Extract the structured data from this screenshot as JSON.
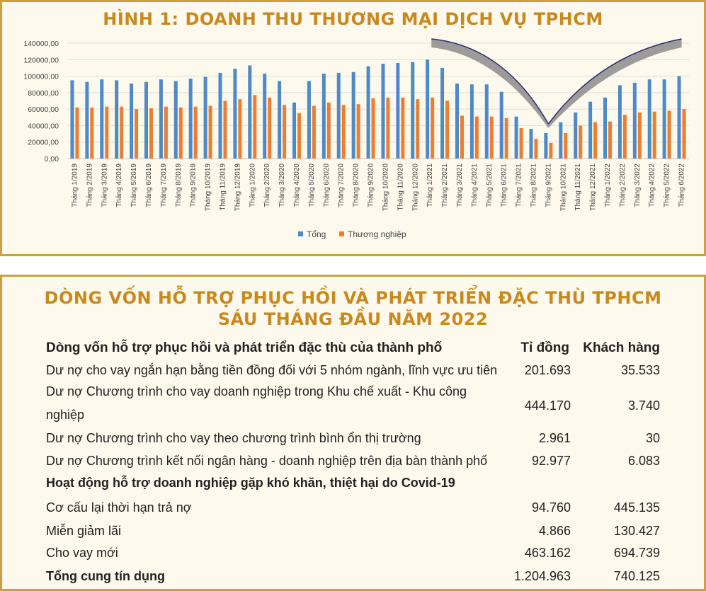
{
  "chart_panel": {
    "title": "HÌNH 1: DOANH THU THƯƠNG MẠI DỊCH VỤ TPHCM"
  },
  "chart_data": {
    "type": "bar",
    "categories": [
      "Tháng 1/2019",
      "Tháng 2/2019",
      "Tháng 3/2019",
      "Tháng 4/2019",
      "Tháng 5/2019",
      "Tháng 6/2019",
      "Tháng 7/2019",
      "Tháng 8/2019",
      "Tháng 9/2019",
      "Tháng 10/2019",
      "Tháng 11/2019",
      "Tháng 12/2019",
      "Tháng 1/2020",
      "Tháng 2/2020",
      "Tháng 3/2020",
      "Tháng 4/2020",
      "Tháng 5/2020",
      "Tháng 6/2020",
      "Tháng 7/2020",
      "Tháng 8/2020",
      "Tháng 9/2020",
      "Tháng 10/2020",
      "Tháng 11/2020",
      "Tháng 12/2020",
      "Tháng 1/2021",
      "Tháng 2/2021",
      "Tháng 3/2021",
      "Tháng 4/2021",
      "Tháng 5/2021",
      "Tháng 6/2021",
      "Tháng 7/2021",
      "Tháng 8/2021",
      "Tháng 9/2021",
      "Tháng 10/2021",
      "Tháng 11/2021",
      "Tháng 12/2021",
      "Tháng 1/2022",
      "Tháng 2/2022",
      "Tháng 3/2022",
      "Tháng 4/2022",
      "Tháng 5/2022",
      "Tháng 6/2022"
    ],
    "series": [
      {
        "name": "Tổng",
        "color": "#4e8ac8",
        "values": [
          95000,
          93000,
          96000,
          95000,
          91000,
          93000,
          96000,
          94000,
          97000,
          99000,
          104000,
          109000,
          113000,
          103000,
          94000,
          68000,
          94000,
          103000,
          104000,
          105000,
          112000,
          115000,
          116000,
          117000,
          120000,
          110000,
          91000,
          90000,
          90000,
          81000,
          51000,
          36000,
          31000,
          44000,
          56000,
          69000,
          74000,
          89000,
          92000,
          96000,
          96000,
          100000
        ]
      },
      {
        "name": "Thương nghiệp",
        "color": "#ee7d31",
        "values": [
          62000,
          62000,
          63000,
          63000,
          60000,
          61000,
          63000,
          62000,
          63000,
          64000,
          70000,
          72000,
          77000,
          74000,
          65000,
          55000,
          64000,
          68000,
          65000,
          66000,
          73000,
          74000,
          74000,
          72000,
          74000,
          70000,
          52000,
          51000,
          51000,
          49000,
          37000,
          24000,
          19000,
          31000,
          40000,
          44000,
          45000,
          53000,
          56000,
          57000,
          58000,
          60000
        ]
      }
    ],
    "y_ticks": [
      "0,00",
      "20000,00",
      "40000,00",
      "60000,00",
      "80000,00",
      "100000,00",
      "120000,00",
      "140000,00"
    ],
    "ylim": [
      0,
      140000
    ],
    "grid": true,
    "legend_position": "bottom",
    "xlabel": "",
    "ylabel": ""
  },
  "table_panel": {
    "title_line1": "DÒNG VỐN HỖ TRỢ PHỤC HỒI VÀ PHÁT TRIỂN ĐẶC THÙ TPHCM",
    "title_line2": "SÁU THÁNG ĐẦU NĂM 2022",
    "header": {
      "label": "Dòng vốn hỗ trợ phục hồi và phát triển đặc thù của thành phố",
      "col1": "Tỉ đồng",
      "col2": "Khách hàng"
    },
    "rows": [
      {
        "label": "Dư nợ cho vay ngắn hạn bằng tiền đồng đối với 5 nhóm ngành, lĩnh vực ưu tiên",
        "v1": "201.693",
        "v2": "35.533"
      },
      {
        "label": "Dư nợ Chương trình cho vay doanh nghiệp trong Khu chế xuất - Khu công",
        "label2": "nghiệp",
        "v1": "444.170",
        "v2": "3.740"
      },
      {
        "label": "Dư nợ Chương trình cho vay theo chương trình bình ổn thị trường",
        "v1": "2.961",
        "v2": "30"
      },
      {
        "label": "Dư nợ Chương trình kết nối ngân hàng - doanh nghiệp trên địa bàn thành phố",
        "v1": "92.977",
        "v2": "6.083"
      },
      {
        "label": "Hoạt động hỗ trợ doanh nghiệp gặp khó khăn, thiệt hại do Covid-19"
      },
      {
        "label": "Cơ cấu lại thời hạn trả nợ",
        "v1": "94.760",
        "v2": "445.135"
      },
      {
        "label": "Miễn giảm lãi",
        "v1": "4.866",
        "v2": "130.427"
      },
      {
        "label": "Cho vay mới",
        "v1": "463.162",
        "v2": "694.739"
      },
      {
        "label": "Tổng cung tín dụng",
        "v1": "1.204.963",
        "v2": "740.125"
      }
    ]
  }
}
